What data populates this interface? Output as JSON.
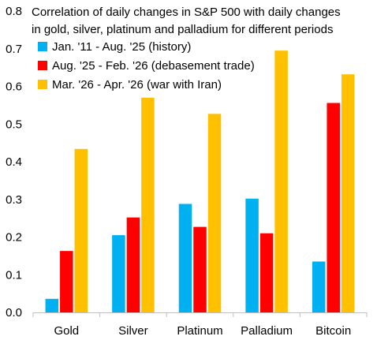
{
  "chart_data": {
    "type": "bar",
    "title_lines": [
      "Correlation of daily changes in S&P 500 with daily changes",
      "in gold, silver, platinum and palladium for different periods"
    ],
    "categories": [
      "Gold",
      "Silver",
      "Platinum",
      "Palladium",
      "Bitcoin"
    ],
    "series": [
      {
        "name": "Jan. '11 - Aug. '25 (history)",
        "color": "#00B0F0",
        "values": [
          0.036,
          0.205,
          0.288,
          0.302,
          0.135
        ]
      },
      {
        "name": "Aug. '25 - Feb. '26 (debasement trade)",
        "color": "#FF0000",
        "values": [
          0.163,
          0.252,
          0.227,
          0.21,
          0.556
        ]
      },
      {
        "name": "Mar. '26 - Apr. '26 (war with Iran)",
        "color": "#FFC000",
        "values": [
          0.434,
          0.57,
          0.527,
          0.695,
          0.632
        ]
      }
    ],
    "ylim": [
      0,
      0.8
    ],
    "yticks": [
      "0.0",
      "0.1",
      "0.2",
      "0.3",
      "0.4",
      "0.5",
      "0.6",
      "0.7",
      "0.8"
    ],
    "grid": false,
    "legend_position": "top-left"
  }
}
